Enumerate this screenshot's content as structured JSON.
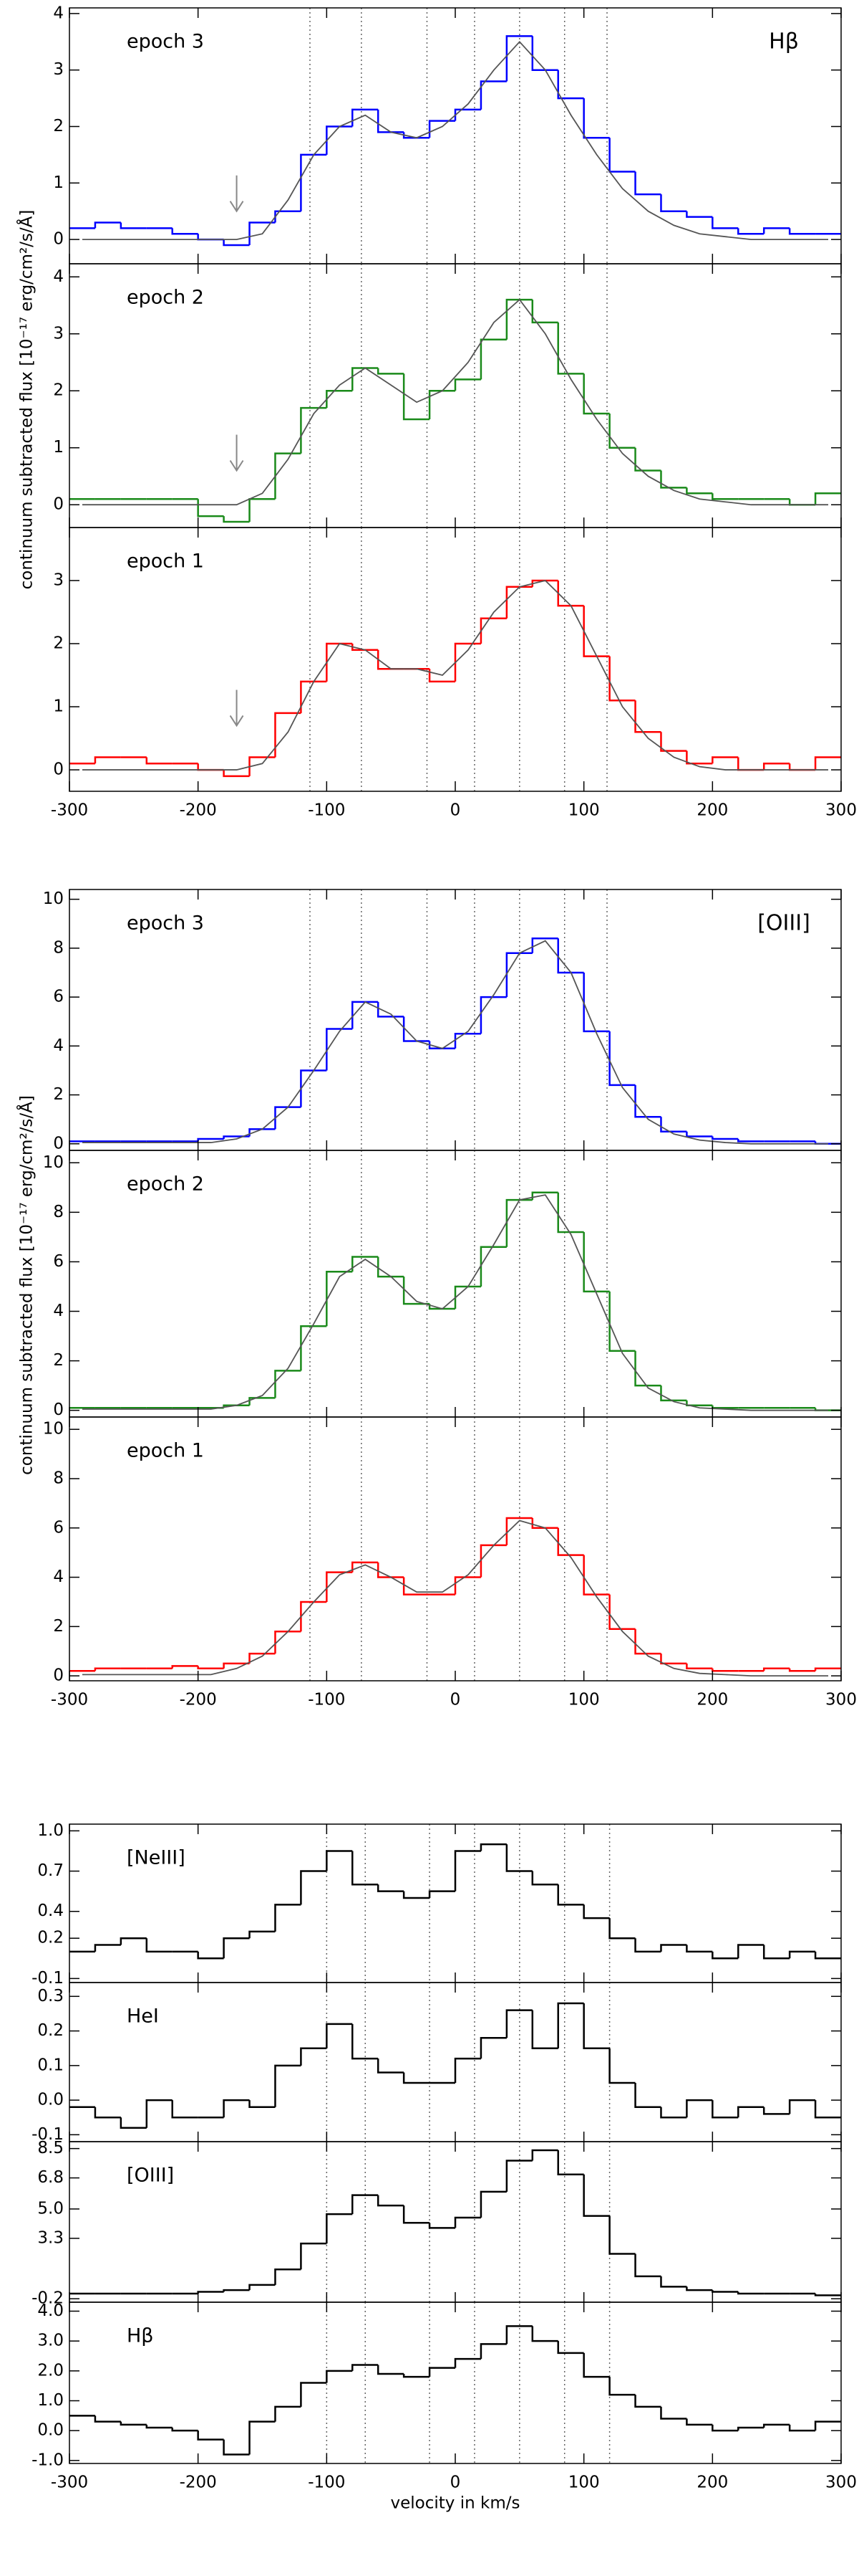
{
  "chart_data": [
    {
      "type": "step",
      "title": "Hβ",
      "ylabel": "continuum subtracted flux [10⁻¹⁷ erg/cm²/s/Å]",
      "x": [
        -290,
        -270,
        -250,
        -230,
        -210,
        -190,
        -170,
        -150,
        -130,
        -110,
        -90,
        -70,
        -50,
        -30,
        -10,
        10,
        30,
        50,
        70,
        90,
        110,
        130,
        150,
        170,
        190,
        210,
        230,
        250,
        270,
        290
      ],
      "series": [
        {
          "name": "epoch 3",
          "color": "#0000ff",
          "values": [
            0.2,
            0.3,
            0.2,
            0.2,
            0.1,
            0.0,
            -0.1,
            0.3,
            0.5,
            1.5,
            2.0,
            2.3,
            1.9,
            1.8,
            2.1,
            2.3,
            2.8,
            3.6,
            3.0,
            2.5,
            1.8,
            1.2,
            0.8,
            0.5,
            0.4,
            0.2,
            0.1,
            0.2,
            0.1,
            0.1
          ]
        },
        {
          "style": "line",
          "color": "#555555",
          "values": [
            0,
            0,
            0,
            0,
            0,
            0,
            0,
            0.1,
            0.7,
            1.5,
            2.0,
            2.2,
            1.9,
            1.8,
            2.0,
            2.4,
            3.0,
            3.5,
            3.0,
            2.2,
            1.5,
            0.9,
            0.5,
            0.25,
            0.1,
            0.05,
            0,
            0,
            0,
            0
          ]
        }
      ],
      "xlim": [
        -300,
        300
      ],
      "xticks": [
        -300,
        -200,
        -100,
        0,
        100,
        200,
        300
      ],
      "ylim": [
        -0.43,
        4.1
      ],
      "yticks": [
        0,
        1,
        2,
        3,
        4
      ],
      "vlines": [
        -113,
        -73,
        -22,
        15,
        50,
        85,
        118
      ],
      "arrow": {
        "x": -170,
        "y": 0.5
      }
    },
    {
      "type": "step",
      "x": [
        -290,
        -270,
        -250,
        -230,
        -210,
        -190,
        -170,
        -150,
        -130,
        -110,
        -90,
        -70,
        -50,
        -30,
        -10,
        10,
        30,
        50,
        70,
        90,
        110,
        130,
        150,
        170,
        190,
        210,
        230,
        250,
        270,
        290
      ],
      "series": [
        {
          "name": "epoch 2",
          "color": "#1a8a1a",
          "values": [
            0.1,
            0.1,
            0.1,
            0.1,
            0.1,
            -0.2,
            -0.3,
            0.1,
            0.9,
            1.7,
            2.0,
            2.4,
            2.3,
            1.5,
            2.0,
            2.2,
            2.9,
            3.6,
            3.2,
            2.3,
            1.6,
            1.0,
            0.6,
            0.3,
            0.2,
            0.1,
            0.1,
            0.1,
            0.0,
            0.2
          ]
        },
        {
          "style": "line",
          "color": "#555555",
          "values": [
            0,
            0,
            0,
            0,
            0,
            0,
            0,
            0.2,
            0.8,
            1.6,
            2.1,
            2.4,
            2.1,
            1.8,
            2.0,
            2.5,
            3.2,
            3.6,
            3.0,
            2.2,
            1.5,
            0.9,
            0.5,
            0.25,
            0.1,
            0.05,
            0,
            0,
            0,
            0
          ]
        }
      ],
      "xlim": [
        -300,
        300
      ],
      "xticks": [
        -300,
        -200,
        -100,
        0,
        100,
        200,
        300
      ],
      "ylim": [
        -0.4,
        4.23
      ],
      "yticks": [
        0,
        1,
        2,
        3,
        4
      ],
      "vlines": [
        -113,
        -73,
        -22,
        15,
        50,
        85,
        118
      ],
      "arrow": {
        "x": -170,
        "y": 0.6
      }
    },
    {
      "type": "step",
      "x": [
        -290,
        -270,
        -250,
        -230,
        -210,
        -190,
        -170,
        -150,
        -130,
        -110,
        -90,
        -70,
        -50,
        -30,
        -10,
        10,
        30,
        50,
        70,
        90,
        110,
        130,
        150,
        170,
        190,
        210,
        230,
        250,
        270,
        290
      ],
      "series": [
        {
          "name": "epoch 1",
          "color": "#ff0000",
          "values": [
            0.1,
            0.2,
            0.2,
            0.1,
            0.1,
            0.0,
            -0.1,
            0.2,
            0.9,
            1.4,
            2.0,
            1.9,
            1.6,
            1.6,
            1.4,
            2.0,
            2.4,
            2.9,
            3.0,
            2.6,
            1.8,
            1.1,
            0.6,
            0.3,
            0.1,
            0.2,
            0.0,
            0.1,
            0.0,
            0.2
          ]
        },
        {
          "style": "line",
          "color": "#555555",
          "values": [
            0,
            0,
            0,
            0,
            0,
            0,
            0,
            0.1,
            0.6,
            1.4,
            2.0,
            1.9,
            1.6,
            1.6,
            1.5,
            1.9,
            2.5,
            2.9,
            3.0,
            2.6,
            1.8,
            1.0,
            0.5,
            0.2,
            0.05,
            0,
            0,
            0,
            0,
            0
          ]
        }
      ],
      "xlim": [
        -300,
        300
      ],
      "xticks": [
        -300,
        -200,
        -100,
        0,
        100,
        200,
        300
      ],
      "ylim": [
        -0.34,
        3.84
      ],
      "yticks": [
        0,
        1,
        2,
        3
      ],
      "vlines": [
        -113,
        -73,
        -22,
        15,
        50,
        85,
        118
      ],
      "arrow": {
        "x": -170,
        "y": 0.7
      }
    },
    {
      "type": "step",
      "title": "[OIII]",
      "x": [
        -290,
        -270,
        -250,
        -230,
        -210,
        -190,
        -170,
        -150,
        -130,
        -110,
        -90,
        -70,
        -50,
        -30,
        -10,
        10,
        30,
        50,
        70,
        90,
        110,
        130,
        150,
        170,
        190,
        210,
        230,
        250,
        270,
        290
      ],
      "series": [
        {
          "name": "epoch 3",
          "color": "#0000ff",
          "values": [
            0.1,
            0.1,
            0.1,
            0.1,
            0.1,
            0.2,
            0.3,
            0.6,
            1.5,
            3.0,
            4.7,
            5.8,
            5.2,
            4.2,
            3.9,
            4.5,
            6.0,
            7.8,
            8.4,
            7.0,
            4.6,
            2.4,
            1.1,
            0.5,
            0.3,
            0.2,
            0.1,
            0.1,
            0.1,
            0.0
          ]
        },
        {
          "style": "line",
          "color": "#555555",
          "values": [
            0.05,
            0.05,
            0.05,
            0.05,
            0.05,
            0.05,
            0.2,
            0.6,
            1.5,
            3.0,
            4.6,
            5.8,
            5.3,
            4.2,
            3.9,
            4.6,
            6.1,
            7.8,
            8.3,
            7.0,
            4.5,
            2.3,
            1.0,
            0.4,
            0.15,
            0.05,
            0,
            0,
            0,
            0
          ]
        }
      ],
      "xlim": [
        -300,
        300
      ],
      "xticks": [
        -300,
        -200,
        -100,
        0,
        100,
        200,
        300
      ],
      "ylim": [
        -0.27,
        10.4
      ],
      "yticks": [
        0,
        2,
        4,
        6,
        8,
        10
      ],
      "vlines": [
        -113,
        -73,
        -22,
        15,
        50,
        85,
        118
      ]
    },
    {
      "type": "step",
      "ylabel": "continuum subtracted flux [10⁻¹⁷ erg/cm²/s/Å]",
      "x": [
        -290,
        -270,
        -250,
        -230,
        -210,
        -190,
        -170,
        -150,
        -130,
        -110,
        -90,
        -70,
        -50,
        -30,
        -10,
        10,
        30,
        50,
        70,
        90,
        110,
        130,
        150,
        170,
        190,
        210,
        230,
        250,
        270,
        290
      ],
      "series": [
        {
          "name": "epoch 2",
          "color": "#1a8a1a",
          "values": [
            0.1,
            0.1,
            0.1,
            0.1,
            0.1,
            0.1,
            0.2,
            0.5,
            1.6,
            3.4,
            5.6,
            6.2,
            5.4,
            4.3,
            4.1,
            5.0,
            6.6,
            8.5,
            8.8,
            7.2,
            4.8,
            2.4,
            1.0,
            0.4,
            0.2,
            0.1,
            0.1,
            0.1,
            0.1,
            0.0
          ]
        },
        {
          "style": "line",
          "color": "#555555",
          "values": [
            0.05,
            0.05,
            0.05,
            0.05,
            0.05,
            0.05,
            0.2,
            0.6,
            1.7,
            3.5,
            5.4,
            6.1,
            5.4,
            4.4,
            4.1,
            5.0,
            6.7,
            8.5,
            8.7,
            7.1,
            4.7,
            2.3,
            0.9,
            0.35,
            0.1,
            0.05,
            0,
            0,
            0,
            0
          ]
        }
      ],
      "xlim": [
        -300,
        300
      ],
      "xticks": [
        -300,
        -200,
        -100,
        0,
        100,
        200,
        300
      ],
      "ylim": [
        -0.27,
        10.5
      ],
      "yticks": [
        0,
        2,
        4,
        6,
        8,
        10
      ],
      "vlines": [
        -113,
        -73,
        -22,
        15,
        50,
        85,
        118
      ]
    },
    {
      "type": "step",
      "x": [
        -290,
        -270,
        -250,
        -230,
        -210,
        -190,
        -170,
        -150,
        -130,
        -110,
        -90,
        -70,
        -50,
        -30,
        -10,
        10,
        30,
        50,
        70,
        90,
        110,
        130,
        150,
        170,
        190,
        210,
        230,
        250,
        270,
        290
      ],
      "series": [
        {
          "name": "epoch 1",
          "color": "#ff0000",
          "values": [
            0.2,
            0.3,
            0.3,
            0.3,
            0.4,
            0.3,
            0.5,
            0.9,
            1.8,
            3.0,
            4.2,
            4.6,
            4.0,
            3.3,
            3.3,
            4.0,
            5.3,
            6.4,
            6.0,
            4.9,
            3.3,
            1.9,
            0.9,
            0.5,
            0.3,
            0.2,
            0.2,
            0.3,
            0.2,
            0.3
          ]
        },
        {
          "style": "line",
          "color": "#555555",
          "values": [
            0.05,
            0.05,
            0.05,
            0.05,
            0.05,
            0.05,
            0.3,
            0.8,
            1.8,
            3.0,
            4.1,
            4.5,
            4.0,
            3.4,
            3.4,
            4.1,
            5.3,
            6.3,
            6.0,
            4.8,
            3.2,
            1.8,
            0.8,
            0.3,
            0.1,
            0.05,
            0,
            0,
            0,
            0
          ]
        }
      ],
      "xlim": [
        -300,
        300
      ],
      "xticks": [
        -300,
        -200,
        -100,
        0,
        100,
        200,
        300
      ],
      "ylim": [
        -0.2,
        10.5
      ],
      "yticks": [
        0,
        2,
        4,
        6,
        8,
        10
      ],
      "vlines": [
        -113,
        -73,
        -22,
        15,
        50,
        85,
        118
      ]
    },
    {
      "type": "step",
      "x": [
        -290,
        -270,
        -250,
        -230,
        -210,
        -190,
        -170,
        -150,
        -130,
        -110,
        -90,
        -70,
        -50,
        -30,
        -10,
        10,
        30,
        50,
        70,
        90,
        110,
        130,
        150,
        170,
        190,
        210,
        230,
        250,
        270,
        290
      ],
      "series": [
        {
          "name": "[NeIII]",
          "color": "#000000",
          "values": [
            0.1,
            0.15,
            0.2,
            0.1,
            0.1,
            0.05,
            0.2,
            0.25,
            0.45,
            0.7,
            0.85,
            0.6,
            0.55,
            0.5,
            0.55,
            0.85,
            0.9,
            0.7,
            0.6,
            0.45,
            0.35,
            0.2,
            0.1,
            0.15,
            0.1,
            0.05,
            0.15,
            0.05,
            0.1,
            0.05
          ]
        }
      ],
      "xlim": [
        -300,
        300
      ],
      "xticks": [
        -300,
        -200,
        -100,
        0,
        100,
        200,
        300
      ],
      "ylim": [
        -0.13,
        1.05
      ],
      "yticks": [
        {
          "value": 1,
          "label": "1.0"
        },
        0.7,
        0.4,
        0.2,
        -0.1
      ],
      "vlines": [
        -100,
        -70,
        -20,
        15,
        50,
        85,
        120
      ]
    },
    {
      "type": "step",
      "x": [
        -290,
        -270,
        -250,
        -230,
        -210,
        -190,
        -170,
        -150,
        -130,
        -110,
        -90,
        -70,
        -50,
        -30,
        -10,
        10,
        30,
        50,
        70,
        90,
        110,
        130,
        150,
        170,
        190,
        210,
        230,
        250,
        270,
        290
      ],
      "series": [
        {
          "name": "HeI",
          "color": "#000000",
          "values": [
            -0.02,
            -0.05,
            -0.08,
            0.0,
            -0.05,
            -0.05,
            0.0,
            -0.02,
            0.1,
            0.15,
            0.22,
            0.12,
            0.08,
            0.05,
            0.05,
            0.12,
            0.18,
            0.26,
            0.15,
            0.28,
            0.15,
            0.05,
            -0.02,
            -0.05,
            0.0,
            -0.05,
            -0.02,
            -0.04,
            0.0,
            -0.05
          ]
        }
      ],
      "xlim": [
        -300,
        300
      ],
      "xticks": [
        -300,
        -200,
        -100,
        0,
        100,
        200,
        300
      ],
      "ylim": [
        -0.12,
        0.34
      ],
      "yticks": [
        0.3,
        0.2,
        0.1,
        {
          "value": 0,
          "label": "0.0"
        },
        -0.1
      ],
      "vlines": [
        -100,
        -70,
        -20,
        15,
        50,
        85,
        120
      ]
    },
    {
      "type": "step",
      "x": [
        -290,
        -270,
        -250,
        -230,
        -210,
        -190,
        -170,
        -150,
        -130,
        -110,
        -90,
        -70,
        -50,
        -30,
        -10,
        10,
        30,
        50,
        70,
        90,
        110,
        130,
        150,
        170,
        190,
        210,
        230,
        250,
        270,
        290
      ],
      "series": [
        {
          "name": "[OIII]",
          "color": "#000000",
          "values": [
            0.1,
            0.1,
            0.1,
            0.1,
            0.1,
            0.2,
            0.3,
            0.6,
            1.5,
            3.0,
            4.7,
            5.8,
            5.2,
            4.2,
            3.9,
            4.5,
            6.0,
            7.8,
            8.4,
            7.0,
            4.6,
            2.4,
            1.1,
            0.5,
            0.3,
            0.2,
            0.1,
            0.1,
            0.1,
            0.0
          ]
        }
      ],
      "xlim": [
        -300,
        300
      ],
      "xticks": [
        -300,
        -200,
        -100,
        0,
        100,
        200,
        300
      ],
      "ylim": [
        -0.4,
        8.9
      ],
      "yticks": [
        8.5,
        6.8,
        {
          "value": 5,
          "label": "5.0"
        },
        3.3,
        -0.2
      ],
      "vlines": [
        -100,
        -70,
        -20,
        15,
        50,
        85,
        120
      ]
    },
    {
      "type": "step",
      "xlabel": "velocity in km/s",
      "x": [
        -290,
        -270,
        -250,
        -230,
        -210,
        -190,
        -170,
        -150,
        -130,
        -110,
        -90,
        -70,
        -50,
        -30,
        -10,
        10,
        30,
        50,
        70,
        90,
        110,
        130,
        150,
        170,
        190,
        210,
        230,
        250,
        270,
        290
      ],
      "series": [
        {
          "name": "Hβ",
          "color": "#000000",
          "values": [
            0.5,
            0.3,
            0.2,
            0.1,
            0.0,
            -0.3,
            -0.8,
            0.3,
            0.8,
            1.6,
            2.0,
            2.2,
            1.9,
            1.8,
            2.1,
            2.4,
            2.9,
            3.5,
            3.0,
            2.6,
            1.8,
            1.2,
            0.8,
            0.4,
            0.2,
            0.0,
            0.1,
            0.2,
            0.0,
            0.3
          ]
        }
      ],
      "xlim": [
        -300,
        300
      ],
      "xticks": [
        -300,
        -200,
        -100,
        0,
        100,
        200,
        300
      ],
      "ylim": [
        -1.1,
        4.3
      ],
      "yticks": [
        {
          "value": 4,
          "label": "4.0"
        },
        {
          "value": 3,
          "label": "3.0"
        },
        {
          "value": 2,
          "label": "2.0"
        },
        {
          "value": 1,
          "label": "1.0"
        },
        {
          "value": 0,
          "label": "0.0"
        },
        {
          "value": -1,
          "label": "-1.0"
        }
      ],
      "vlines": [
        -100,
        -70,
        -20,
        15,
        50,
        85,
        120
      ]
    }
  ]
}
